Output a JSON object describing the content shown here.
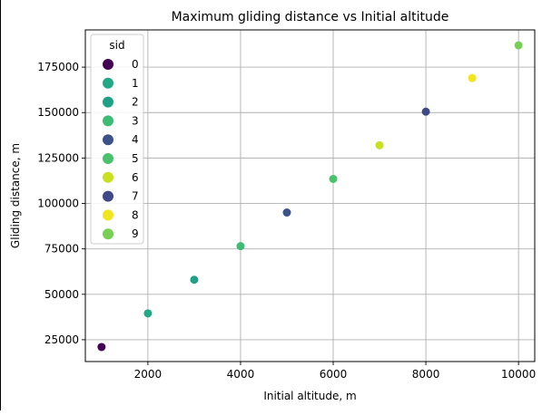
{
  "chart_data": {
    "type": "scatter",
    "title": "Maximum gliding distance vs Initial altitude",
    "xlabel": "Initial altitude, m",
    "ylabel": "Gliding distance, m",
    "xlim": [
      650,
      10350
    ],
    "ylim": [
      13000,
      195500
    ],
    "x_ticks": [
      2000,
      4000,
      6000,
      8000,
      10000
    ],
    "y_ticks": [
      25000,
      50000,
      75000,
      100000,
      125000,
      150000,
      175000
    ],
    "grid": true,
    "legend": {
      "title": "sid",
      "placement": "top-left",
      "entries": [
        {
          "label": "0",
          "color": "#440154"
        },
        {
          "label": "1",
          "color": "#22a884"
        },
        {
          "label": "2",
          "color": "#1fa187"
        },
        {
          "label": "3",
          "color": "#3dbc74"
        },
        {
          "label": "4",
          "color": "#3b528b"
        },
        {
          "label": "5",
          "color": "#4ac16d"
        },
        {
          "label": "6",
          "color": "#c8e020"
        },
        {
          "label": "7",
          "color": "#3f4889"
        },
        {
          "label": "8",
          "color": "#f1e51d"
        },
        {
          "label": "9",
          "color": "#75d054"
        }
      ]
    },
    "points": [
      {
        "x": 1000,
        "y": 21000,
        "sid": "0",
        "color": "#440154"
      },
      {
        "x": 2000,
        "y": 39500,
        "sid": "1",
        "color": "#22a884"
      },
      {
        "x": 3000,
        "y": 58000,
        "sid": "2",
        "color": "#1fa187"
      },
      {
        "x": 4000,
        "y": 76500,
        "sid": "3",
        "color": "#3dbc74"
      },
      {
        "x": 5000,
        "y": 95000,
        "sid": "4",
        "color": "#3b528b"
      },
      {
        "x": 6000,
        "y": 113500,
        "sid": "5",
        "color": "#4ac16d"
      },
      {
        "x": 7000,
        "y": 132000,
        "sid": "6",
        "color": "#c8e020"
      },
      {
        "x": 8000,
        "y": 150500,
        "sid": "7",
        "color": "#3f4889"
      },
      {
        "x": 9000,
        "y": 169000,
        "sid": "8",
        "color": "#f1e51d"
      },
      {
        "x": 10000,
        "y": 187000,
        "sid": "9",
        "color": "#75d054"
      }
    ]
  }
}
